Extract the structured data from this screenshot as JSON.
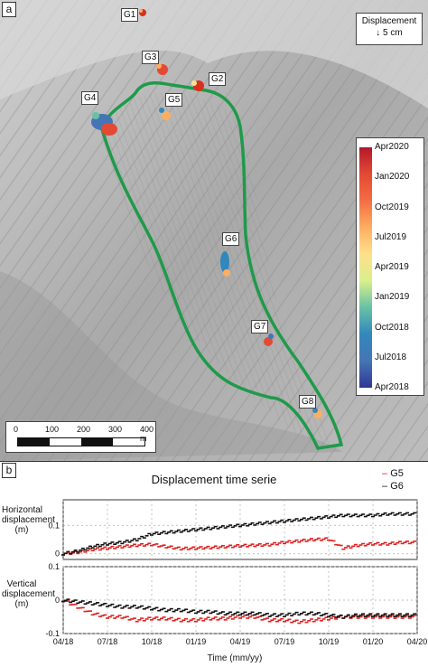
{
  "panel_a": {
    "letter": "a",
    "gauges": [
      "G1",
      "G2",
      "G3",
      "G4",
      "G5",
      "G6",
      "G7",
      "G8"
    ],
    "displacement_box": {
      "title": "Displacement",
      "arrow": "↓",
      "value": "5 cm"
    },
    "colorbar_ticks": [
      "Apr2020",
      "Jan2020",
      "Oct2019",
      "Jul2019",
      "Apr2019",
      "Jan2019",
      "Oct2018",
      "Jul2018",
      "Apr2018"
    ],
    "scale_ticks": [
      "0",
      "100",
      "200",
      "300",
      "400 m"
    ],
    "outline_color": "#1f9a4a"
  },
  "panel_b": {
    "letter": "b",
    "title": "Displacement time serie",
    "legend": [
      {
        "label": "G5",
        "color": "#e02020"
      },
      {
        "label": "G6",
        "color": "#111111"
      }
    ],
    "top_ylabel": "Horizontal displacement (m)",
    "top_ylabel_lines": [
      "Horizontal",
      "displacement",
      "(m)"
    ],
    "top_yticks": [
      "0.1",
      "0"
    ],
    "bottom_ylabel_lines": [
      "Vertical",
      "displacement",
      "(m)"
    ],
    "bottom_yticks": [
      "0.1",
      "0",
      "-0.1"
    ],
    "xlabel": "Time (mm/yy)",
    "xticks": [
      "04/18",
      "07/18",
      "10/18",
      "01/19",
      "04/19",
      "07/19",
      "10/19",
      "01/20",
      "04/20"
    ]
  },
  "chart_data": [
    {
      "type": "scatter",
      "title": "",
      "xlabel": "",
      "ylabel": "Horizontal displacement (m)",
      "ylim": [
        -0.02,
        0.19
      ],
      "x_unit": "months since 04/18",
      "series": [
        {
          "name": "G5",
          "x": [
            0,
            1,
            2,
            3,
            4,
            5,
            6,
            7,
            8,
            9,
            10,
            11,
            12,
            13,
            14,
            15,
            16,
            17,
            18,
            19,
            20,
            21,
            22,
            23,
            24
          ],
          "y": [
            0,
            0.005,
            0.015,
            0.02,
            0.025,
            0.03,
            0.033,
            0.025,
            0.018,
            0.02,
            0.022,
            0.025,
            0.028,
            0.03,
            0.032,
            0.04,
            0.045,
            0.05,
            0.052,
            0.02,
            0.03,
            0.035,
            0.035,
            0.04,
            0.04
          ]
        },
        {
          "name": "G6",
          "x": [
            0,
            1,
            2,
            3,
            4,
            5,
            6,
            7,
            8,
            9,
            10,
            11,
            12,
            13,
            14,
            15,
            16,
            17,
            18,
            19,
            20,
            21,
            22,
            23,
            24
          ],
          "y": [
            0,
            0.01,
            0.025,
            0.035,
            0.04,
            0.05,
            0.07,
            0.075,
            0.08,
            0.085,
            0.09,
            0.095,
            0.1,
            0.105,
            0.11,
            0.115,
            0.12,
            0.125,
            0.13,
            0.135,
            0.135,
            0.135,
            0.14,
            0.14,
            0.14
          ]
        }
      ]
    },
    {
      "type": "scatter",
      "title": "",
      "xlabel": "Time (mm/yy)",
      "ylabel": "Vertical displacement (m)",
      "ylim": [
        -0.1,
        0.1
      ],
      "x_unit": "months since 04/18",
      "series": [
        {
          "name": "G5",
          "x": [
            0,
            1,
            2,
            3,
            4,
            5,
            6,
            7,
            8,
            9,
            10,
            11,
            12,
            13,
            14,
            15,
            16,
            17,
            18,
            19,
            20,
            21,
            22,
            23,
            24
          ],
          "y": [
            0,
            -0.02,
            -0.04,
            -0.05,
            -0.05,
            -0.06,
            -0.055,
            -0.055,
            -0.06,
            -0.06,
            -0.055,
            -0.055,
            -0.05,
            -0.05,
            -0.06,
            -0.06,
            -0.065,
            -0.06,
            -0.055,
            -0.05,
            -0.05,
            -0.05,
            -0.05,
            -0.05,
            -0.05
          ]
        },
        {
          "name": "G6",
          "x": [
            0,
            1,
            2,
            3,
            4,
            5,
            6,
            7,
            8,
            9,
            10,
            11,
            12,
            13,
            14,
            15,
            16,
            17,
            18,
            19,
            20,
            21,
            22,
            23,
            24
          ],
          "y": [
            0,
            -0.005,
            -0.01,
            -0.015,
            -0.02,
            -0.02,
            -0.025,
            -0.03,
            -0.03,
            -0.035,
            -0.035,
            -0.04,
            -0.04,
            -0.04,
            -0.045,
            -0.045,
            -0.04,
            -0.04,
            -0.045,
            -0.05,
            -0.045,
            -0.045,
            -0.045,
            -0.045,
            -0.045
          ]
        }
      ]
    }
  ]
}
